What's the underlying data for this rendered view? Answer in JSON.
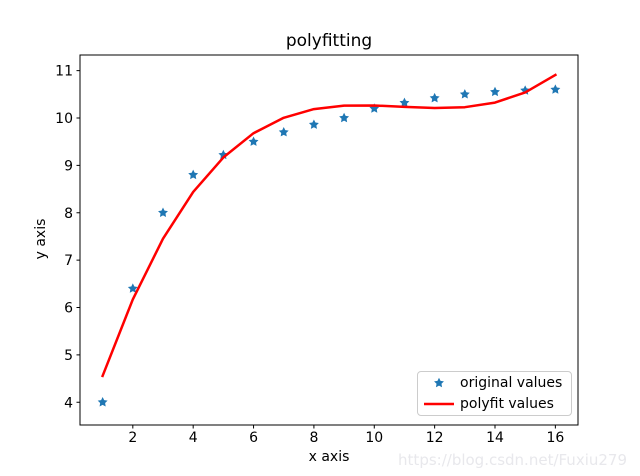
{
  "title": "polyfitting",
  "watermark_text": "https://blog.csdn.net/Fuxiu279",
  "chart_data": {
    "type": "scatter+line",
    "title": "polyfitting",
    "xlabel": "x axis",
    "ylabel": "y axis",
    "xlim": [
      0.25,
      16.75
    ],
    "ylim": [
      3.52,
      11.33
    ],
    "xticks": [
      2,
      4,
      6,
      8,
      10,
      12,
      14,
      16
    ],
    "yticks": [
      4,
      5,
      6,
      7,
      8,
      9,
      10,
      11
    ],
    "grid": false,
    "background": "#ffffff",
    "spine_color": "#000000",
    "legend_position": "lower right",
    "x": [
      1,
      2,
      3,
      4,
      5,
      6,
      7,
      8,
      9,
      10,
      11,
      12,
      13,
      14,
      15,
      16
    ],
    "series": [
      {
        "name": "original values",
        "type": "scatter",
        "marker": "star",
        "color": "#1f77b4",
        "values": [
          4.0,
          6.4,
          8.0,
          8.8,
          9.22,
          9.5,
          9.7,
          9.86,
          10.0,
          10.2,
          10.32,
          10.42,
          10.5,
          10.55,
          10.58,
          10.6
        ]
      },
      {
        "name": "polyfit values",
        "type": "line",
        "marker": "line",
        "color": "#ff0000",
        "linewidth": 2.5,
        "values": [
          4.557,
          6.171,
          7.453,
          8.44,
          9.169,
          9.679,
          10.005,
          10.187,
          10.261,
          10.264,
          10.235,
          10.211,
          10.229,
          10.326,
          10.541,
          10.91
        ]
      }
    ],
    "legend": {
      "items": [
        {
          "label": "original values",
          "marker": "star",
          "color": "#1f77b4"
        },
        {
          "label": "polyfit values",
          "marker": "line",
          "color": "#ff0000"
        }
      ]
    }
  }
}
